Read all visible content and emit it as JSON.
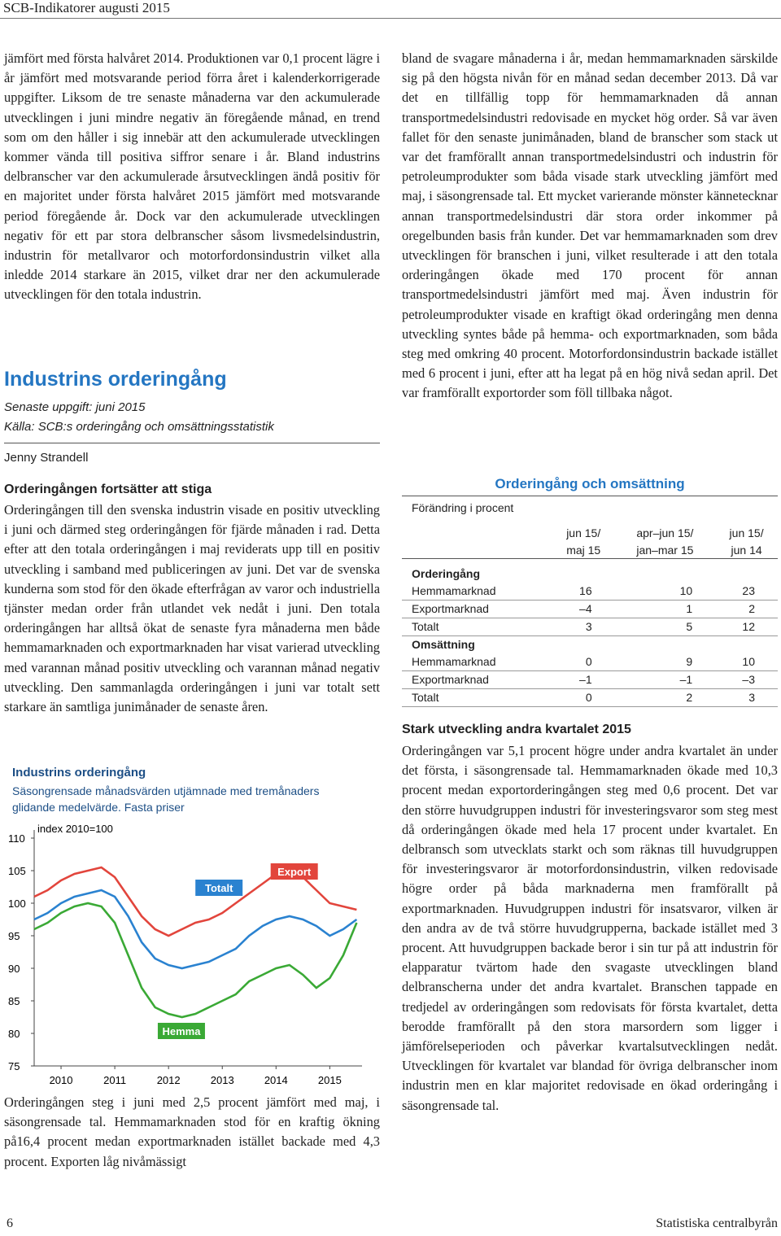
{
  "header": {
    "title": "SCB-Indikatorer augusti 2015"
  },
  "left": {
    "p1": "jämfört med första halvåret 2014. Produktionen var 0,1 procent lägre i år jämfört med motsvarande period förra året i kalenderkorrigerade uppgifter. Liksom de tre senaste månaderna var den ackumulerade utvecklingen i juni mindre negativ än föregående månad, en trend som om den håller i sig innebär att den ackumulerade utvecklingen kommer vända till positiva siffror senare i år. Bland industrins delbranscher var den ackumulerade årsutvecklingen ändå positiv för en majoritet under första halvåret 2015 jämfört med motsvarande period föregående år. Dock var den ackumulerade utvecklingen negativ för ett par stora delbranscher såsom livsmedelsindustrin, industrin för metallvaror och motorfordonsindustrin vilket alla inledde 2014 starkare än 2015, vilket drar ner den ackumulerade utvecklingen för den totala industrin.",
    "section_title": "Industrins orderingång",
    "latest": "Senaste uppgift: juni 2015",
    "source": "Källa: SCB:s orderingång och omsättningsstatistik",
    "author": "Jenny Strandell",
    "subhead": "Orderingången fortsätter att stiga",
    "p2": "Orderingången till den svenska industrin visade en positiv utveckling i juni och därmed steg orderingången för fjärde månaden i rad. Detta efter att den totala orderingången i maj reviderats upp till en positiv utveckling i samband med publiceringen av juni. Det var de svenska kunderna som stod för den ökade efterfrågan av varor och industriella tjänster medan order från utlandet vek nedåt i juni. Den totala orderingången har alltså ökat de senaste fyra månaderna men både hemmamarknaden och exportmarknaden har visat varierad utveckling med varannan månad positiv utveckling och varannan månad negativ utveckling. Den sammanlagda orderingången i juni var totalt sett starkare än samtliga junimånader de senaste åren.",
    "p3": "Orderingången steg i juni med 2,5 procent jämfört med maj, i säsongrensade tal. Hemmamarknaden stod för en kraftig ökning på16,4 procent medan exportmarknaden istället backade med 4,3 procent. Exporten låg nivåmässigt"
  },
  "chart_data": {
    "type": "line",
    "title": "Industrins orderingång",
    "subtitle": "Säsongrensade månadsvärden utjämnade med tremånaders glidande medelvärde. Fasta priser",
    "y_unit": "index 2010=100",
    "x": [
      2009.5,
      2009.75,
      2010,
      2010.25,
      2010.5,
      2010.75,
      2011,
      2011.25,
      2011.5,
      2011.75,
      2012,
      2012.25,
      2012.5,
      2012.75,
      2013,
      2013.25,
      2013.5,
      2013.75,
      2014,
      2014.25,
      2014.5,
      2014.75,
      2015,
      2015.25,
      2015.5
    ],
    "xlim": [
      2009.5,
      2015.6
    ],
    "xticks": [
      2010,
      2011,
      2012,
      2013,
      2014,
      2015
    ],
    "ylim": [
      75,
      110
    ],
    "yticks": [
      75,
      80,
      85,
      90,
      95,
      100,
      105,
      110
    ],
    "series": [
      {
        "name": "Export",
        "color": "#e2453c",
        "values": [
          101,
          102,
          103.5,
          104.5,
          105,
          105.5,
          104,
          101,
          98,
          96,
          95,
          96,
          97,
          97.5,
          98.5,
          100,
          101.5,
          103,
          104.5,
          105,
          104,
          102,
          100,
          99.5,
          99
        ]
      },
      {
        "name": "Totalt",
        "color": "#2a82d0",
        "values": [
          97.5,
          98.5,
          100,
          101,
          101.5,
          102,
          101,
          98,
          94,
          91.5,
          90.5,
          90,
          90.5,
          91,
          92,
          93,
          95,
          96.5,
          97.5,
          98,
          97.5,
          96.5,
          95,
          96,
          97.5
        ]
      },
      {
        "name": "Hemma",
        "color": "#3aa935",
        "values": [
          96,
          97,
          98.5,
          99.5,
          100,
          99.5,
          97,
          92,
          87,
          84,
          83,
          82.5,
          83,
          84,
          85,
          86,
          88,
          89,
          90,
          90.5,
          89,
          87,
          88.5,
          92,
          97
        ]
      }
    ]
  },
  "right": {
    "p1": "bland de svagare månaderna i år, medan hemmamarknaden särskilde sig på den högsta nivån för en månad sedan december 2013. Då var det en tillfällig topp för hemmamarknaden då annan transportmedelsindustri redovisade en mycket hög order. Så var även fallet för den senaste junimånaden, bland de branscher som stack ut var det framförallt annan transportmedelsindustri och industrin för petroleumprodukter som båda visade stark utveckling jämfört med maj, i säsongrensade tal. Ett mycket varierande mönster kännetecknar annan transportmedelsindustri där stora order inkommer på oregelbunden basis från kunder. Det var hemmamarknaden som drev utvecklingen för branschen i juni, vilket resulterade i att den totala orderingången ökade med 170 procent för annan transportmedelsindustri jämfört med maj. Även industrin för petroleumprodukter visade en kraftigt ökad orderingång men denna utveckling syntes både på hemma- och exportmarknaden, som båda steg med omkring 40 procent. Motorfordonsindustrin backade istället med 6 procent i juni, efter att ha legat på en hög nivå sedan april. Det var framförallt exportorder som föll tillbaka något.",
    "subhead": "Stark utveckling andra kvartalet 2015",
    "p2": "Orderingången var 5,1 procent högre under andra kvartalet än under det första, i säsongrensade tal. Hemmamarknaden ökade med 10,3 procent medan exportorderingången steg med 0,6 procent. Det var den större huvudgruppen industri för investeringsvaror som steg mest då orderingången ökade med hela 17 procent under kvartalet. En delbransch som utvecklats starkt och som räknas till huvudgruppen för investeringsvaror är motorfordonsindustrin, vilken redovisade högre order på båda marknaderna men framförallt på exportmarknaden. Huvudgruppen industri för insatsvaror, vilken är den andra av de två större huvudgrupperna, backade istället med 3 procent. Att huvudgruppen backade beror i sin tur på att industrin för elapparatur tvärtom hade den svagaste utvecklingen bland delbranscherna under det andra kvartalet. Branschen tappade en tredjedel av orderingången som redovisats för första kvartalet, detta berodde framförallt på den stora marsordern som ligger i jämförelseperioden och påverkar kvartalsutvecklingen nedåt. Utvecklingen för kvartalet var blandad för övriga delbranscher inom industrin men en klar majoritet redovisade en ökad orderingång i säsongrensade tal."
  },
  "table": {
    "title": "Orderingång och omsättning",
    "unit": "Förändring i procent",
    "headers": [
      [
        "jun 15/",
        "maj 15"
      ],
      [
        "apr–jun 15/",
        "jan–mar 15"
      ],
      [
        "jun 15/",
        "jun 14"
      ]
    ],
    "sections": [
      {
        "title": "Orderingång",
        "rows": [
          [
            "Hemmamarknad",
            "16",
            "10",
            "23"
          ],
          [
            "Exportmarknad",
            "–4",
            "1",
            "2"
          ],
          [
            "Totalt",
            "3",
            "5",
            "12"
          ]
        ]
      },
      {
        "title": "Omsättning",
        "rows": [
          [
            "Hemmamarknad",
            "0",
            "9",
            "10"
          ],
          [
            "Exportmarknad",
            "–1",
            "–1",
            "–3"
          ],
          [
            "Totalt",
            "0",
            "2",
            "3"
          ]
        ]
      }
    ]
  },
  "footer": {
    "page": "6",
    "publisher": "Statistiska centralbyrån"
  }
}
